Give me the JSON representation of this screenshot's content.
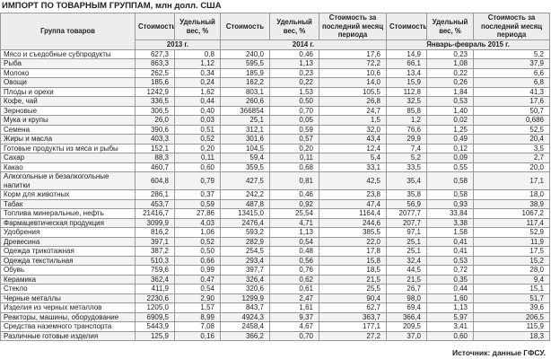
{
  "header": {
    "title": "ИМПОРТ ПО ТОВАРНЫМ ГРУППАМ, млн долл. США"
  },
  "table": {
    "columns": [
      "Группа товаров",
      "Стоимость",
      "Удельный вес, %",
      "Стоимость",
      "Удельный вес, %",
      "Стоимость за последний месяц периода",
      "Стоимость",
      "Удельный вес, %",
      "Стоимость за последний месяц периода"
    ],
    "periods": [
      "2013 г.",
      "2014 г.",
      "Январь-февраль 2015 г."
    ],
    "rows": [
      [
        "Мясо и съедобные субпродукты",
        "627,3",
        "0,8",
        "240,0",
        "0,46",
        "17,6",
        "14,9",
        "0,23",
        "5,2"
      ],
      [
        "Рыба",
        "863,3",
        "1,12",
        "595,5",
        "1,13",
        "72,2",
        "66,1",
        "1,08",
        "37,9"
      ],
      [
        "Молоко",
        "262,5",
        "0,34",
        "185,9",
        "0,23",
        "10,6",
        "13,4",
        "0,22",
        "6,6"
      ],
      [
        "Овощи",
        "185,6",
        "0,24",
        "162,2",
        "0,22",
        "14,0",
        "15,9",
        "0,26",
        "6,8"
      ],
      [
        "Плоды и орехи",
        "1242,9",
        "1,62",
        "803,1",
        "1,53",
        "105,5",
        "112,8",
        "1,84",
        "41,3"
      ],
      [
        "Кофе, чай",
        "336,5",
        "0,44",
        "260,6",
        "0,50",
        "26,8",
        "32,5",
        "0,53",
        "17,6"
      ],
      [
        "Зерновые",
        "306,5",
        "0,40",
        "366854",
        "0,70",
        "24,7",
        "85,8",
        "1,40",
        "50,7"
      ],
      [
        "Мука и крупы",
        "26,0",
        "0,03",
        "25,1",
        "0,05",
        "1,5",
        "1,2",
        "0,02",
        "0,686"
      ],
      [
        "Семена",
        "390,6",
        "0,51",
        "312,1",
        "0,59",
        "32,0",
        "76,6",
        "1,25",
        "52,5"
      ],
      [
        "Жиры и масла",
        "403,3",
        "0,52",
        "301,6",
        "0,57",
        "43,4",
        "29,9",
        "0,49",
        "20,4"
      ],
      [
        "Готовые продукты из мяса и рыбы",
        "152,1",
        "0,20",
        "104,5",
        "0,20",
        "12,4",
        "7,4",
        "0,12",
        "3,5"
      ],
      [
        "Сахар",
        "88,3",
        "0,11",
        "59,4",
        "0,11",
        "5,4",
        "5,2",
        "0,09",
        "2,7"
      ],
      [
        "Какао",
        "460,7",
        "0,60",
        "359,5",
        "0,68",
        "33,1",
        "33,5",
        "0,55",
        "20,0"
      ],
      [
        "Алкогольные и безалкогольные напитки",
        "604,8",
        "0,79",
        "427,5",
        "0,81",
        "42,5",
        "35,4",
        "0,58",
        "17,1"
      ],
      [
        "Корм для животных",
        "286,1",
        "0,37",
        "242,2",
        "0,46",
        "23,8",
        "35,8",
        "0,58",
        "18,0"
      ],
      [
        "Табак",
        "453,7",
        "0,59",
        "487,8",
        "0,92",
        "47,4",
        "56,9",
        "0,93",
        "38,9"
      ],
      [
        "Топлива минеральные, нефть",
        "21416,7",
        "27,86",
        "13415,0",
        "25,54",
        "1164,4",
        "2077,7",
        "33,84",
        "1067,2"
      ],
      [
        "Фармацевтическая продукция",
        "3099,9",
        "4,03",
        "2476,4",
        "4,71",
        "244,6",
        "207,7",
        "3,38",
        "117,4"
      ],
      [
        "Удобрения",
        "816,2",
        "1,06",
        "593,2",
        "1,13",
        "385,5",
        "97,1",
        "1,58",
        "52,9"
      ],
      [
        "Древесина",
        "397,1",
        "0,52",
        "282,9",
        "0,54",
        "22,0",
        "25,1",
        "0,41",
        "11,9"
      ],
      [
        "Одежда трикотажная",
        "387,2",
        "0,50",
        "254,5",
        "0,48",
        "17,8",
        "25,1",
        "0,41",
        "17,5"
      ],
      [
        "Одежда текстильная",
        "510,3",
        "0,66",
        "293,4",
        "0,56",
        "15,8",
        "32,4",
        "0,53",
        "15,2"
      ],
      [
        "Обувь",
        "759,6",
        "0,99",
        "397,7",
        "0,76",
        "18,5",
        "44,5",
        "0,72",
        "28,0"
      ],
      [
        "Керамика",
        "362,4",
        "0,47",
        "326,4",
        "0,62",
        "21,5",
        "21,5",
        "0,35",
        "9,4"
      ],
      [
        "Стекло",
        "411,9",
        "0,54",
        "320,6",
        "0,61",
        "25,5",
        "26,7",
        "0,44",
        "15,1"
      ],
      [
        "Черные металлы",
        "2230,6",
        "2,90",
        "1299,9",
        "2,47",
        "90,4",
        "98,0",
        "1,60",
        "51,7"
      ],
      [
        "Изделия из черных металлов",
        "1205,0",
        "1,57",
        "843,7",
        "1,61",
        "62,7",
        "69,4",
        "1,13",
        "39,6"
      ],
      [
        "Реакторы, машины, оборудование",
        "6909,5",
        "8,99",
        "4924,3",
        "9,37",
        "363,7",
        "366,4",
        "5,97",
        "206,5"
      ],
      [
        "Средства наземного транспорта",
        "5443,9",
        "7,08",
        "2458,4",
        "4,67",
        "177,1",
        "209,5",
        "3,41",
        "115,9"
      ],
      [
        "Различные готовые изделия",
        "125,9",
        "0,16",
        "366,2",
        "0,70",
        "27,2",
        "37,0",
        "0,60",
        "18,3"
      ]
    ]
  },
  "footer": {
    "source": "Источник: данные ГФСУ."
  }
}
